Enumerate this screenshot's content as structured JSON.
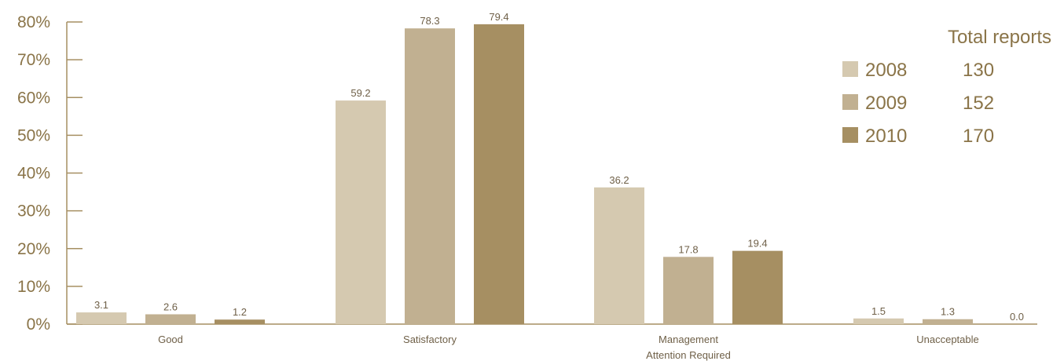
{
  "chart_data": {
    "type": "bar",
    "categories": [
      "Good",
      "Satisfactory",
      "Management\nAttention Required",
      "Unacceptable"
    ],
    "series": [
      {
        "name": "2008",
        "values": [
          3.1,
          59.2,
          36.2,
          1.5
        ],
        "color": "#d5c9b0"
      },
      {
        "name": "2009",
        "values": [
          2.6,
          78.3,
          17.8,
          1.3
        ],
        "color": "#c1b091"
      },
      {
        "name": "2010",
        "values": [
          1.2,
          79.4,
          19.4,
          0.0
        ],
        "color": "#a68f62"
      }
    ],
    "ylim": [
      0,
      80
    ],
    "yticks": [
      "0%",
      "10%",
      "20%",
      "30%",
      "40%",
      "50%",
      "60%",
      "70%",
      "80%"
    ],
    "legend": {
      "title": "Total reports",
      "totals": [
        "130",
        "152",
        "170"
      ],
      "position": "top-right"
    },
    "grid": false
  },
  "colors": {
    "axis": "#a68f62",
    "text": "#8a7448"
  }
}
